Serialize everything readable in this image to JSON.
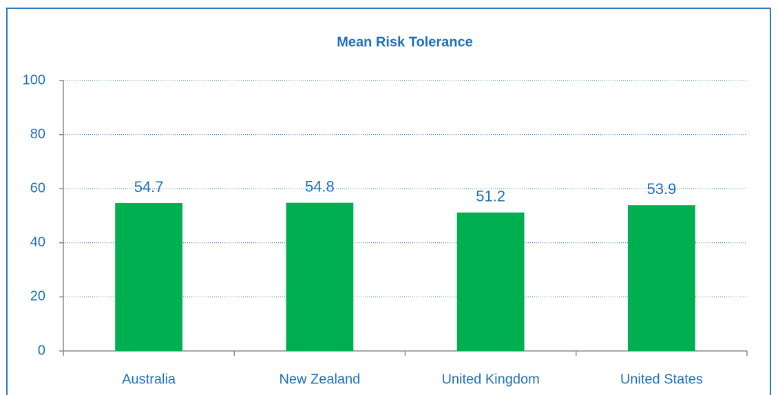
{
  "chart_data": {
    "type": "bar",
    "title": "Mean Risk Tolerance",
    "categories": [
      "Australia",
      "New Zealand",
      "United Kingdom",
      "United States"
    ],
    "values": [
      54.7,
      54.8,
      51.2,
      53.9
    ],
    "color": "#00b050",
    "ylim": [
      0,
      100
    ],
    "yticks": [
      0,
      20,
      40,
      60,
      80,
      100
    ],
    "grid": true
  }
}
